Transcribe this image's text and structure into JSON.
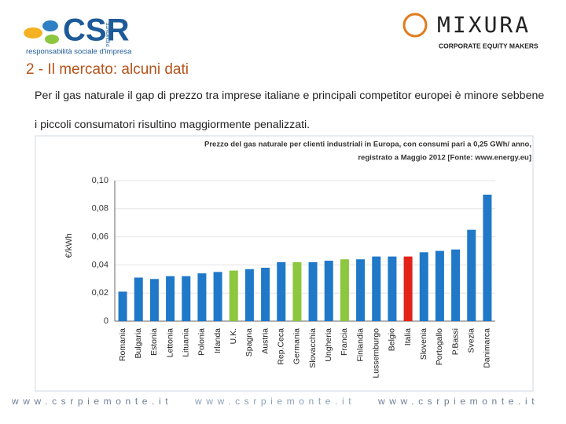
{
  "header": {
    "logo_left": {
      "name": "CSR",
      "region": "PIEMONTE",
      "tagline": "responsabilità sociale d'impresa"
    },
    "logo_right": {
      "name": "MIXURA",
      "tagline": "CORPORATE EQUITY MAKERS"
    }
  },
  "slide": {
    "title": "2 - Il mercato: alcuni dati",
    "text": "Per il gas naturale il gap di prezzo tra imprese italiane e principali competitor europei è minore sebbene i piccoli consumatori risultino maggiormente penalizzati."
  },
  "chart_data": {
    "type": "bar",
    "title": "Prezzo del gas naturale per clienti industriali in Europa, con consumi pari a 0,25 GWh/ anno,",
    "subtitle": "registrato a Maggio 2012 [Fonte: www.energy.eu]",
    "y_label": "€/kWh",
    "categories": [
      "Romania",
      "Bulgaria",
      "Estonia",
      "Lettonia",
      "Lituania",
      "Polonia",
      "Irlanda",
      "U.K.",
      "Spagna",
      "Austria",
      "Rep.Ceca",
      "Germania",
      "Slovacchia",
      "Ungheria",
      "Francia",
      "Finlandia",
      "Lussemburgo",
      "Belgio",
      "Italia",
      "Slovenia",
      "Portogallo",
      "P.Bassi",
      "Svezia",
      "Danimarca"
    ],
    "values": [
      0.021,
      0.031,
      0.03,
      0.032,
      0.032,
      0.034,
      0.035,
      0.036,
      0.037,
      0.038,
      0.042,
      0.042,
      0.042,
      0.043,
      0.044,
      0.044,
      0.046,
      0.046,
      0.046,
      0.049,
      0.05,
      0.051,
      0.065,
      0.09
    ],
    "colors": [
      "#1f78c8",
      "#1f78c8",
      "#1f78c8",
      "#1f78c8",
      "#1f78c8",
      "#1f78c8",
      "#1f78c8",
      "#8dc63f",
      "#1f78c8",
      "#1f78c8",
      "#1f78c8",
      "#8dc63f",
      "#1f78c8",
      "#1f78c8",
      "#8dc63f",
      "#1f78c8",
      "#1f78c8",
      "#1f78c8",
      "#e2231a",
      "#1f78c8",
      "#1f78c8",
      "#1f78c8",
      "#1f78c8",
      "#1f78c8"
    ],
    "ylim": [
      0,
      0.1
    ],
    "yticks": [
      0,
      {
        "value": 0.02,
        "label": "0,02"
      },
      {
        "value": 0.04,
        "label": "0,04"
      },
      {
        "value": 0.06,
        "label": "0,06"
      },
      {
        "value": 0.08,
        "label": "0,08"
      },
      {
        "value": 0.1,
        "label": "0,10"
      }
    ],
    "grid": true
  },
  "footer": [
    "www.csrpiemonte.it",
    "www.csrpiemonte.it",
    "www.csrpiemonte.it"
  ]
}
